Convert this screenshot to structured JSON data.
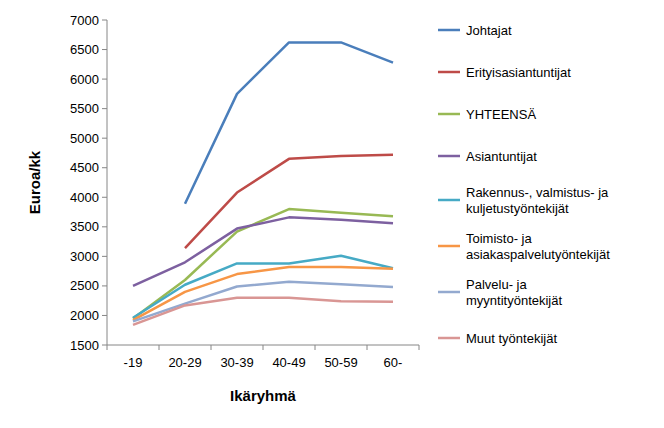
{
  "chart_data": {
    "type": "line",
    "x_label": "Ikäryhmä",
    "y_label": "Euroa/kk",
    "categories": [
      "-19",
      "20-29",
      "30-39",
      "40-49",
      "50-59",
      "60-"
    ],
    "ylim": [
      1500,
      7000
    ],
    "yticks": [
      1500,
      2000,
      2500,
      3000,
      3500,
      4000,
      4500,
      5000,
      5500,
      6000,
      6500,
      7000
    ],
    "grid": false,
    "legend": "right",
    "series": [
      {
        "name": "Johtajat",
        "color": "#4a7ebb",
        "values": [
          null,
          3890,
          5750,
          6620,
          6620,
          6280
        ]
      },
      {
        "name": "Erityisasiantuntijat",
        "color": "#be4b48",
        "values": [
          null,
          3140,
          4080,
          4650,
          4700,
          4720
        ]
      },
      {
        "name": "YHTEENSÄ",
        "color": "#98b954",
        "values": [
          1950,
          2600,
          3420,
          3800,
          3740,
          3680
        ]
      },
      {
        "name": "Asiantuntijat",
        "color": "#7d60a0",
        "values": [
          2500,
          2900,
          3470,
          3660,
          3620,
          3560
        ]
      },
      {
        "name": "Rakennus-, valmistus- ja kuljetustyöntekijät",
        "color": "#46aac5",
        "values": [
          1960,
          2520,
          2880,
          2880,
          3010,
          2800
        ]
      },
      {
        "name": "Toimisto- ja asiakaspalvelutyöntekijät",
        "color": "#f79646",
        "values": [
          1920,
          2400,
          2700,
          2820,
          2820,
          2790
        ]
      },
      {
        "name": "Palvelu- ja myyntityöntekijät",
        "color": "#93a9cf",
        "values": [
          1900,
          2200,
          2490,
          2570,
          2530,
          2480
        ]
      },
      {
        "name": "Muut työntekijät",
        "color": "#d99694",
        "values": [
          1840,
          2170,
          2300,
          2300,
          2240,
          2230
        ]
      }
    ]
  }
}
